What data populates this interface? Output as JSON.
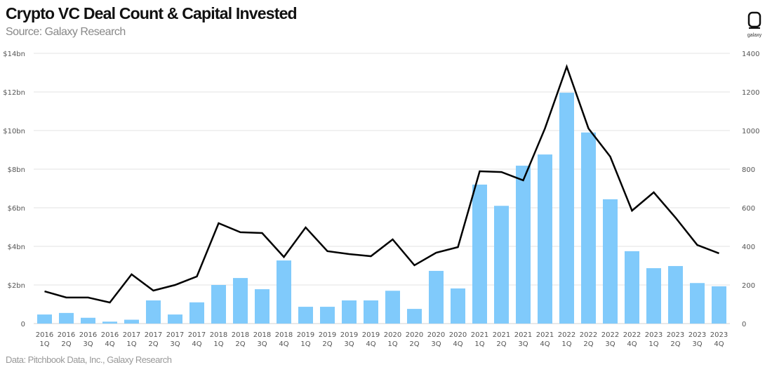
{
  "chart_data": {
    "type": "bar+line",
    "title": "Crypto VC Deal Count & Capital Invested",
    "subtitle": "Source: Galaxy Research",
    "footer": "Data: Pitchbook Data, Inc., Galaxy Research",
    "categories": [
      "2016 1Q",
      "2016 2Q",
      "2016 3Q",
      "2016 4Q",
      "2017 1Q",
      "2017 2Q",
      "2017 3Q",
      "2017 4Q",
      "2018 1Q",
      "2018 2Q",
      "2018 3Q",
      "2018 4Q",
      "2019 1Q",
      "2019 2Q",
      "2019 3Q",
      "2019 4Q",
      "2020 1Q",
      "2020 2Q",
      "2020 3Q",
      "2020 4Q",
      "2021 1Q",
      "2021 2Q",
      "2021 3Q",
      "2021 4Q",
      "2022 1Q",
      "2022 2Q",
      "2022 3Q",
      "2022 4Q",
      "2023 1Q",
      "2023 2Q",
      "2023 3Q",
      "2023 4Q"
    ],
    "series": [
      {
        "type": "bar",
        "axis": "left",
        "unit": "$bn",
        "color": "#80CAFB",
        "values": [
          0.47,
          0.55,
          0.3,
          0.1,
          0.2,
          1.2,
          0.47,
          1.1,
          2.0,
          2.36,
          1.78,
          3.27,
          0.87,
          0.87,
          1.2,
          1.2,
          1.7,
          0.76,
          2.73,
          1.82,
          7.2,
          6.1,
          8.18,
          8.76,
          11.96,
          9.9,
          6.44,
          3.75,
          2.87,
          2.98,
          2.1,
          1.93
        ]
      },
      {
        "type": "line",
        "axis": "right",
        "color": "#000000",
        "values": [
          167,
          135,
          135,
          109,
          255,
          171,
          200,
          244,
          520,
          473,
          469,
          345,
          498,
          375,
          360,
          349,
          436,
          302,
          367,
          396,
          789,
          785,
          742,
          1011,
          1331,
          1011,
          865,
          585,
          680,
          549,
          407,
          364
        ]
      }
    ],
    "left_axis": {
      "range": [
        0,
        14
      ],
      "ticks": [
        "0",
        "$2bn",
        "$4bn",
        "$6bn",
        "$8bn",
        "$10bn",
        "$12bn",
        "$14bn"
      ]
    },
    "right_axis": {
      "range": [
        0,
        1400
      ],
      "ticks": [
        "0",
        "200",
        "400",
        "600",
        "800",
        "1000",
        "1200",
        "1400"
      ]
    },
    "grid": true,
    "legend": "none"
  },
  "logo": {
    "text": "galaxy"
  }
}
